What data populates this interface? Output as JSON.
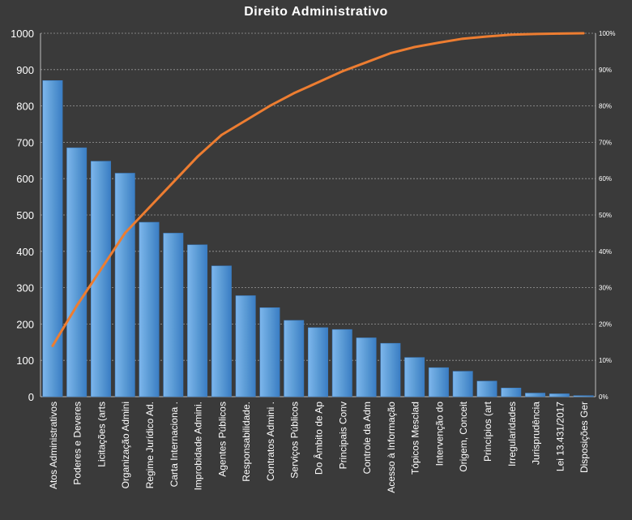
{
  "chart_data": {
    "type": "bar",
    "title": "Direito  Administrativo",
    "categories": [
      "Atos Administrativos",
      "Poderes e Deveres",
      "Licitações (arts",
      "Organização Admini",
      "Regime Jurídico Ad.",
      "Carta Internaciona .",
      "Improbidade Admini.",
      "Agentes Públicos",
      "Responsabilidade.",
      "Contratos Admini .",
      "Serviços Públicos",
      "Do Âmbito de Ap",
      "Principais Conv",
      "Controle da Adm",
      "Acesso à Informação",
      "Tópicos Mesclad",
      "Intervenção do",
      "Origem, Conceit",
      "Princípios (art",
      "Irregularidades",
      "Jurisprudência",
      "Lei 13.431/2017",
      "Disposições Ger"
    ],
    "series": [
      {
        "type": "bar",
        "values": [
          870,
          685,
          648,
          615,
          480,
          450,
          418,
          360,
          278,
          245,
          210,
          190,
          185,
          162,
          147,
          108,
          80,
          70,
          43,
          24,
          10,
          8,
          3
        ]
      },
      {
        "type": "line",
        "axis": "right",
        "values": [
          14,
          25,
          35,
          45,
          52,
          59,
          66,
          72,
          76,
          80,
          83.5,
          86.5,
          89.5,
          92,
          94.5,
          96.2,
          97.4,
          98.5,
          99.1,
          99.6,
          99.8,
          99.9,
          100
        ]
      }
    ],
    "left_axis": {
      "min": 0,
      "max": 1000,
      "step": 100
    },
    "right_axis": {
      "min": 0,
      "max": 100,
      "step": 10,
      "suffix": "%"
    },
    "grid": true,
    "colors": {
      "background": "#3a3a3a",
      "bar": "#5b9bd5",
      "bar_light": "#7db6ec",
      "bar_dark": "#3a7dc4",
      "line": "#ed7d31",
      "grid": "#9a9a9a",
      "text": "#ffffff"
    }
  }
}
